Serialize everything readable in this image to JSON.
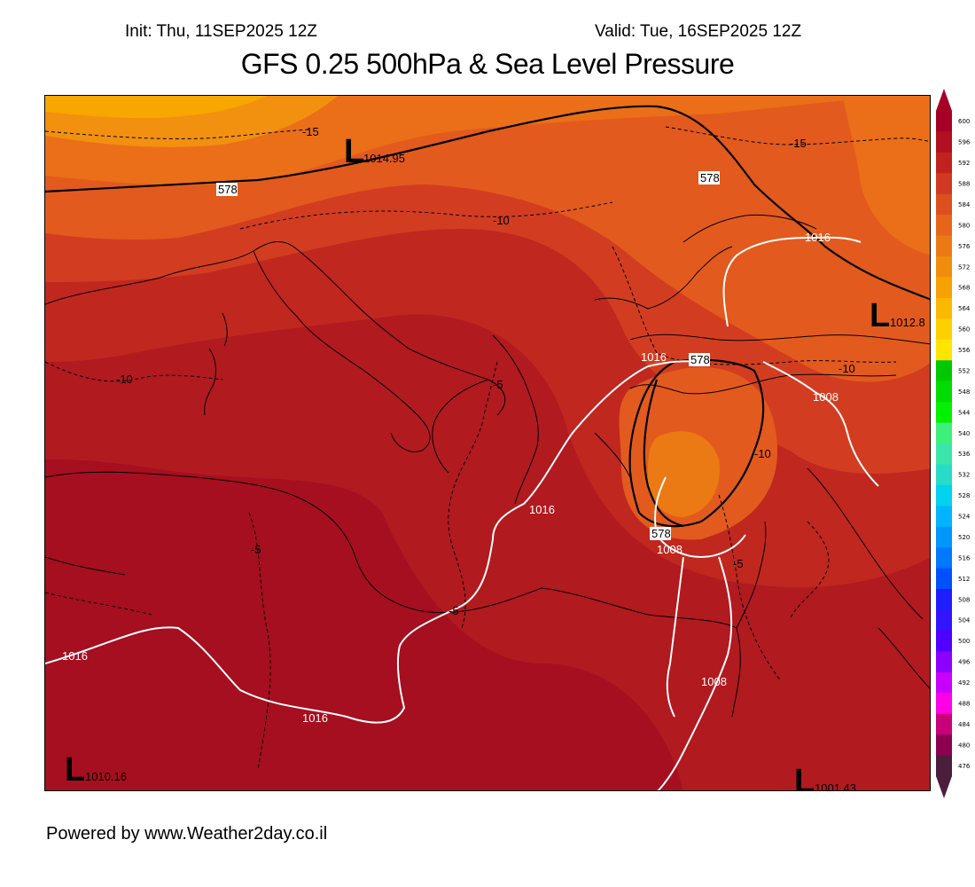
{
  "header": {
    "init": "Init: Thu, 11SEP2025 12Z",
    "valid": "Valid: Tue, 16SEP2025 12Z",
    "title": "GFS 0.25 500hPa & Sea Level Pressure"
  },
  "footer": "Powered by www.Weather2day.co.il",
  "map": {
    "low_symbol": "L",
    "lows": [
      {
        "symbol": "L",
        "value": "1014.95"
      },
      {
        "symbol": "L",
        "value": "1012.8"
      },
      {
        "symbol": "L",
        "value": "1010.16"
      },
      {
        "symbol": "L",
        "value": "1001.43"
      }
    ],
    "height_labels": [
      "578",
      "578",
      "578",
      "578"
    ],
    "temperature_labels": [
      "-15",
      "-15",
      "-10",
      "-10",
      "-10",
      "-10",
      "-5",
      "-5",
      "-5",
      "-5"
    ],
    "pressure_labels": [
      "1016",
      "1016",
      "1016",
      "1016",
      "1016",
      "1008",
      "1008",
      "1008"
    ]
  },
  "colorbar": {
    "labels": [
      "600",
      "596",
      "592",
      "588",
      "584",
      "580",
      "576",
      "572",
      "568",
      "564",
      "560",
      "556",
      "552",
      "548",
      "544",
      "540",
      "536",
      "532",
      "528",
      "524",
      "520",
      "516",
      "512",
      "508",
      "504",
      "500",
      "496",
      "492",
      "488",
      "484",
      "480",
      "476"
    ],
    "colors": [
      "#a50026",
      "#b0101f",
      "#c0231e",
      "#d03a22",
      "#dc4f1f",
      "#e5661b",
      "#ec7a14",
      "#f18d0c",
      "#f7a102",
      "#fbb800",
      "#fdd000",
      "#ffe400",
      "#00c800",
      "#00dc00",
      "#00f000",
      "#3cf07a",
      "#3ce6aa",
      "#28dcc8",
      "#00d2f0",
      "#00b4ff",
      "#0096ff",
      "#0078ff",
      "#0050ff",
      "#1e1eff",
      "#3214ff",
      "#5000ff",
      "#8c00ff",
      "#c800ff",
      "#ff00e6",
      "#c8007a",
      "#8c0050",
      "#4b1e3c"
    ]
  }
}
